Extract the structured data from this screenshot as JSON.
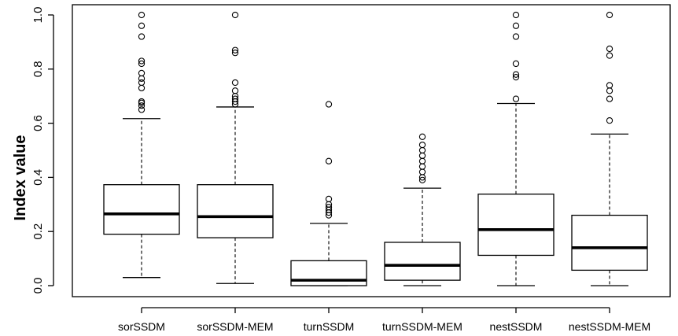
{
  "chart_data": {
    "type": "boxplot",
    "title": "",
    "xlabel": "",
    "ylabel": "Index value",
    "ylim": [
      -0.04,
      1.0
    ],
    "yticks": [
      "0.0",
      "0.2",
      "0.4",
      "0.6",
      "0.8",
      "1.0"
    ],
    "grid": false,
    "categories": [
      "sorSSDM",
      "sorSSDM-MEM",
      "turnSSDM",
      "turnSSDM-MEM",
      "nestSSDM",
      "nestSSDM-MEM"
    ],
    "boxes": [
      {
        "name": "sorSSDM",
        "whisker_low": 0.03,
        "q1": 0.19,
        "median": 0.265,
        "q3": 0.373,
        "whisker_high": 0.617,
        "outliers": [
          0.65,
          0.665,
          0.675,
          0.68,
          0.73,
          0.75,
          0.765,
          0.785,
          0.82,
          0.83,
          0.92,
          0.96,
          1.0
        ]
      },
      {
        "name": "sorSSDM-MEM",
        "whisker_low": 0.008,
        "q1": 0.177,
        "median": 0.255,
        "q3": 0.373,
        "whisker_high": 0.66,
        "outliers": [
          0.67,
          0.68,
          0.69,
          0.7,
          0.72,
          0.75,
          0.86,
          0.87,
          1.0
        ]
      },
      {
        "name": "turnSSDM",
        "whisker_low": 0.0,
        "q1": 0.0,
        "median": 0.02,
        "q3": 0.092,
        "whisker_high": 0.23,
        "outliers": [
          0.26,
          0.27,
          0.28,
          0.29,
          0.3,
          0.32,
          0.46,
          0.67
        ]
      },
      {
        "name": "turnSSDM-MEM",
        "whisker_low": 0.0,
        "q1": 0.02,
        "median": 0.075,
        "q3": 0.16,
        "whisker_high": 0.36,
        "outliers": [
          0.39,
          0.4,
          0.42,
          0.44,
          0.46,
          0.48,
          0.5,
          0.52,
          0.55
        ]
      },
      {
        "name": "nestSSDM",
        "whisker_low": 0.0,
        "q1": 0.112,
        "median": 0.207,
        "q3": 0.338,
        "whisker_high": 0.673,
        "outliers": [
          0.69,
          0.77,
          0.78,
          0.82,
          0.92,
          0.96,
          1.0
        ]
      },
      {
        "name": "nestSSDM-MEM",
        "whisker_low": 0.0,
        "q1": 0.057,
        "median": 0.14,
        "q3": 0.26,
        "whisker_high": 0.56,
        "outliers": [
          0.61,
          0.69,
          0.72,
          0.74,
          0.85,
          0.875,
          1.0
        ]
      }
    ]
  }
}
